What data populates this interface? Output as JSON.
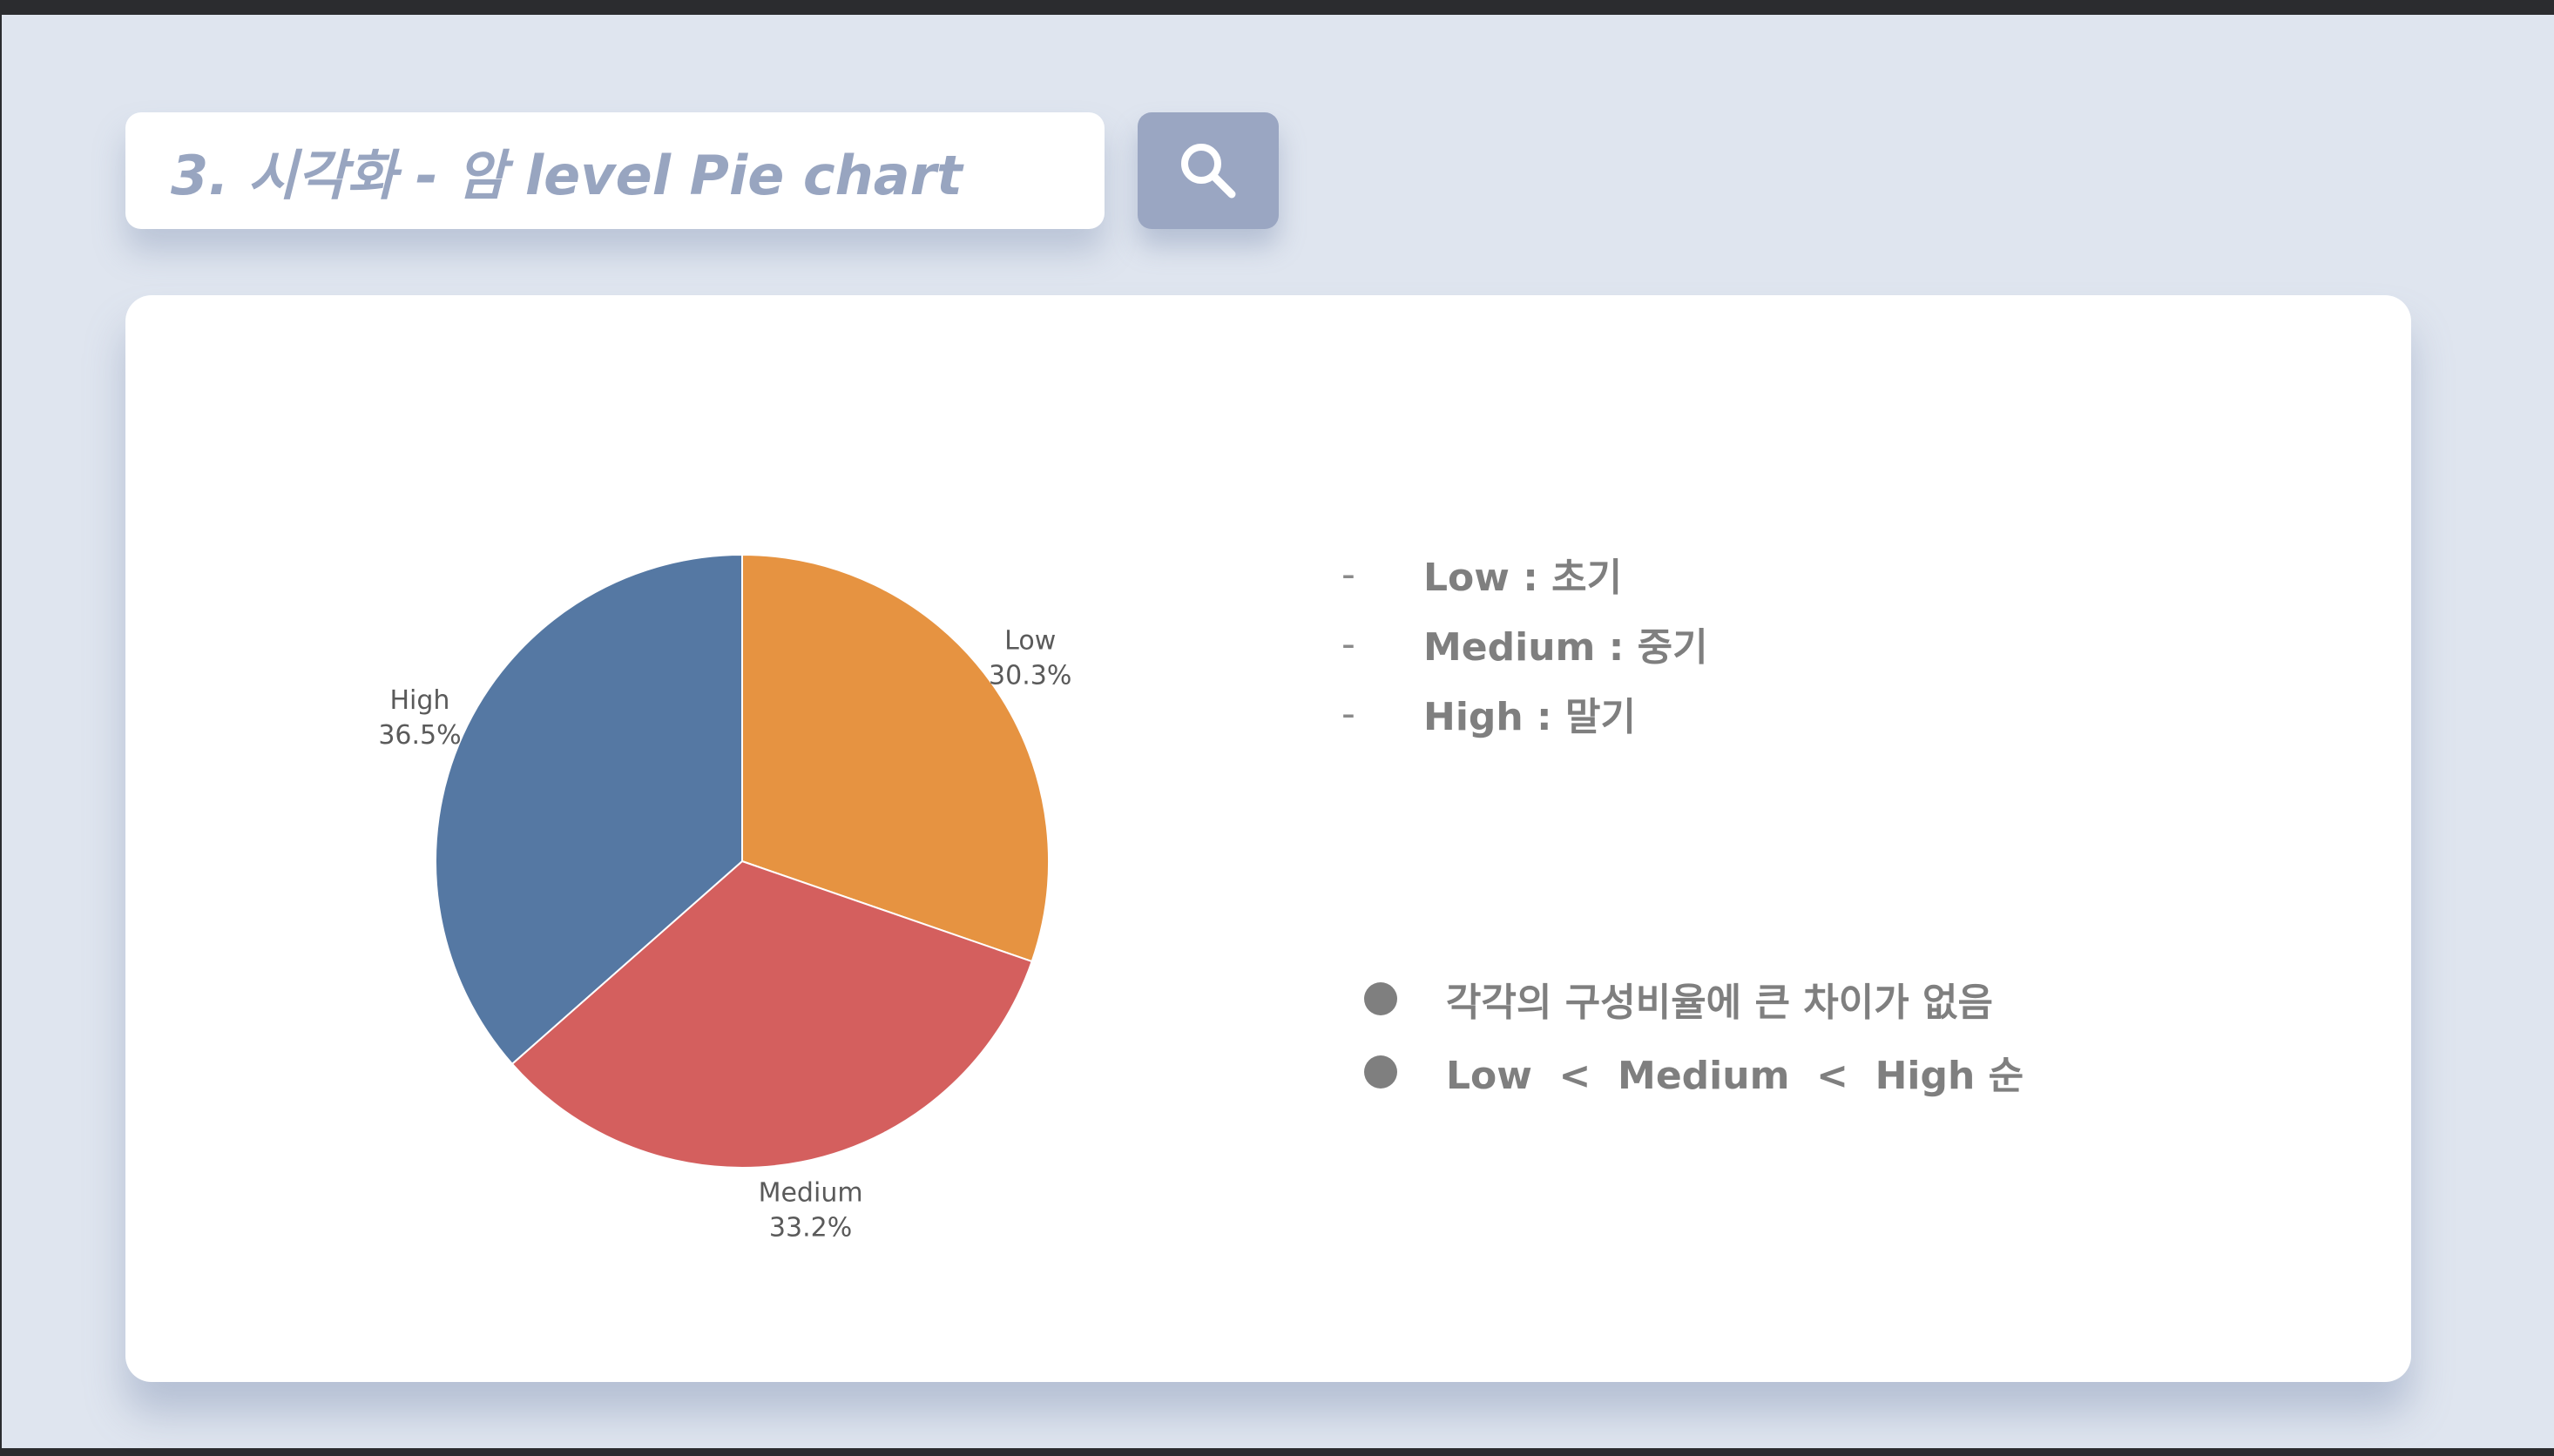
{
  "header": {
    "title": "3. 시각화 - 암 level Pie chart"
  },
  "search_button": {
    "icon": "search-icon"
  },
  "colors": {
    "background": "#dfe5ef",
    "card": "#ffffff",
    "search_button": "#9aa6c2",
    "title_text": "#98a5c0",
    "body_text": "#7f7f7f"
  },
  "chart_data": {
    "type": "pie",
    "title": "",
    "labels": [
      "Low",
      "Medium",
      "High"
    ],
    "values": [
      30.3,
      33.2,
      36.5
    ],
    "value_labels": [
      "30.3%",
      "33.2%",
      "36.5%"
    ],
    "colors": [
      "#e69341",
      "#d45f5e",
      "#5578a3"
    ],
    "start": "12 o'clock",
    "direction": "clockwise",
    "labels_position": "outside"
  },
  "legend_definitions": [
    {
      "bullet": "-",
      "text": "Low : 초기"
    },
    {
      "bullet": "-",
      "text": "Medium : 중기"
    },
    {
      "bullet": "-",
      "text": "High : 말기"
    }
  ],
  "observations": [
    "각각의 구성비율에 큰 차이가 없음",
    "Low  <  Medium  <  High 순"
  ]
}
